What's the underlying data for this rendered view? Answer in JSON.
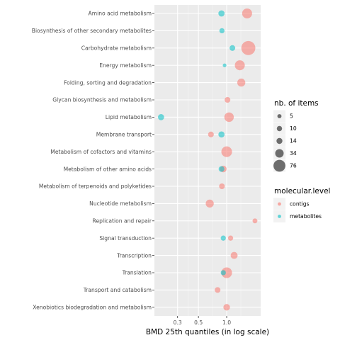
{
  "chart_data": {
    "type": "scatter",
    "xlabel": "BMD 25th quantiles (in log scale)",
    "ylabel": "",
    "xscale": "log",
    "xlim": [
      0.17,
      2.3
    ],
    "xticks": [
      {
        "value": 0.3,
        "label": "0.3"
      },
      {
        "value": 0.5,
        "label": "0.5"
      },
      {
        "value": 1.0,
        "label": "1.0"
      }
    ],
    "categories": [
      "Amino acid metabolism",
      "Biosynthesis of other secondary metabolites",
      "Carbohydrate metabolism",
      "Energy metabolism",
      "Folding, sorting and degradation",
      "Glycan biosynthesis and metabolism",
      "Lipid metabolism",
      "Membrane transport",
      "Metabolism of cofactors and vitamins",
      "Metabolism of other amino acids",
      "Metabolism of terpenoids and polyketides",
      "Nucleotide metabolism",
      "Replication and repair",
      "Signal transduction",
      "Transcription",
      "Translation",
      "Transport and catabolism",
      "Xenobiotics biodegradation and metabolism"
    ],
    "grid": true,
    "size_legend": {
      "title": "nb. of items",
      "values": [
        5,
        10,
        14,
        34,
        76
      ]
    },
    "color_legend": {
      "title": "molecular.level",
      "entries": [
        {
          "name": "contigs",
          "color": "#F8766D"
        },
        {
          "name": "metabolites",
          "color": "#00BFC4"
        }
      ]
    },
    "series": [
      {
        "name": "contigs",
        "color": "#F8766D",
        "points": [
          {
            "category": "Amino acid metabolism",
            "x": 1.65,
            "size": 34
          },
          {
            "category": "Carbohydrate metabolism",
            "x": 1.7,
            "size": 76
          },
          {
            "category": "Energy metabolism",
            "x": 1.38,
            "size": 34
          },
          {
            "category": "Folding, sorting and degradation",
            "x": 1.43,
            "size": 20
          },
          {
            "category": "Glycan biosynthesis and metabolism",
            "x": 1.02,
            "size": 8
          },
          {
            "category": "Lipid metabolism",
            "x": 1.06,
            "size": 30
          },
          {
            "category": "Membrane transport",
            "x": 0.68,
            "size": 8
          },
          {
            "category": "Metabolism of cofactors and vitamins",
            "x": 1.0,
            "size": 40
          },
          {
            "category": "Metabolism of other amino acids",
            "x": 0.92,
            "size": 12
          },
          {
            "category": "Metabolism of terpenoids and polyketides",
            "x": 0.89,
            "size": 8
          },
          {
            "category": "Nucleotide metabolism",
            "x": 0.66,
            "size": 20
          },
          {
            "category": "Replication and repair",
            "x": 2.0,
            "size": 5
          },
          {
            "category": "Signal transduction",
            "x": 1.1,
            "size": 6
          },
          {
            "category": "Transcription",
            "x": 1.2,
            "size": 14
          },
          {
            "category": "Translation",
            "x": 1.0,
            "size": 40
          },
          {
            "category": "Transport and catabolism",
            "x": 0.8,
            "size": 8
          },
          {
            "category": "Xenobiotics biodegradation and metabolism",
            "x": 1.0,
            "size": 12
          }
        ]
      },
      {
        "name": "metabolites",
        "color": "#00BFC4",
        "points": [
          {
            "category": "Amino acid metabolism",
            "x": 0.88,
            "size": 10
          },
          {
            "category": "Biosynthesis of other secondary metabolites",
            "x": 0.89,
            "size": 6
          },
          {
            "category": "Carbohydrate metabolism",
            "x": 1.15,
            "size": 8
          },
          {
            "category": "Energy metabolism",
            "x": 0.95,
            "size": 2
          },
          {
            "category": "Lipid metabolism",
            "x": 0.2,
            "size": 10
          },
          {
            "category": "Membrane transport",
            "x": 0.88,
            "size": 10
          },
          {
            "category": "Metabolism of other amino acids",
            "x": 0.88,
            "size": 8
          },
          {
            "category": "Signal transduction",
            "x": 0.92,
            "size": 6
          },
          {
            "category": "Translation",
            "x": 0.92,
            "size": 6
          }
        ]
      }
    ]
  }
}
